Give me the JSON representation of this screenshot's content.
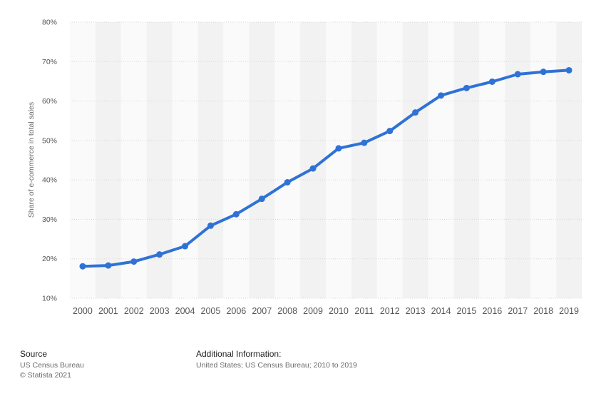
{
  "chart_data": {
    "type": "line",
    "title": "",
    "xlabel": "",
    "ylabel": "Share of e-commerce in total sales",
    "x": [
      "2000",
      "2001",
      "2002",
      "2003",
      "2004",
      "2005",
      "2006",
      "2007",
      "2008",
      "2009",
      "2010",
      "2011",
      "2012",
      "2013",
      "2014",
      "2015",
      "2016",
      "2017",
      "2018",
      "2019"
    ],
    "series": [
      {
        "values": [
          18.1,
          18.3,
          19.3,
          21.1,
          23.2,
          28.4,
          31.3,
          35.2,
          39.4,
          42.9,
          48.0,
          49.4,
          52.4,
          57.1,
          61.4,
          63.3,
          64.9,
          66.8,
          67.4,
          67.8
        ]
      }
    ],
    "ylim": [
      10,
      80
    ],
    "yticks": [
      10,
      20,
      30,
      40,
      50,
      60,
      70,
      80
    ],
    "ytick_labels": [
      "10%",
      "20%",
      "30%",
      "40%",
      "50%",
      "60%",
      "70%",
      "80%"
    ],
    "grid": true,
    "legend": "none",
    "colors": {
      "line": "#2f72d6",
      "band_light": "#fafafa",
      "band_dark": "#f2f2f2",
      "grid": "#d7d7d7",
      "tick_text": "#555555"
    }
  },
  "footer": {
    "source_title": "Source",
    "source_lines": [
      "US Census Bureau",
      "© Statista 2021"
    ],
    "info_title": "Additional Information:",
    "info_lines": [
      "United States; US Census Bureau; 2010 to 2019"
    ]
  }
}
